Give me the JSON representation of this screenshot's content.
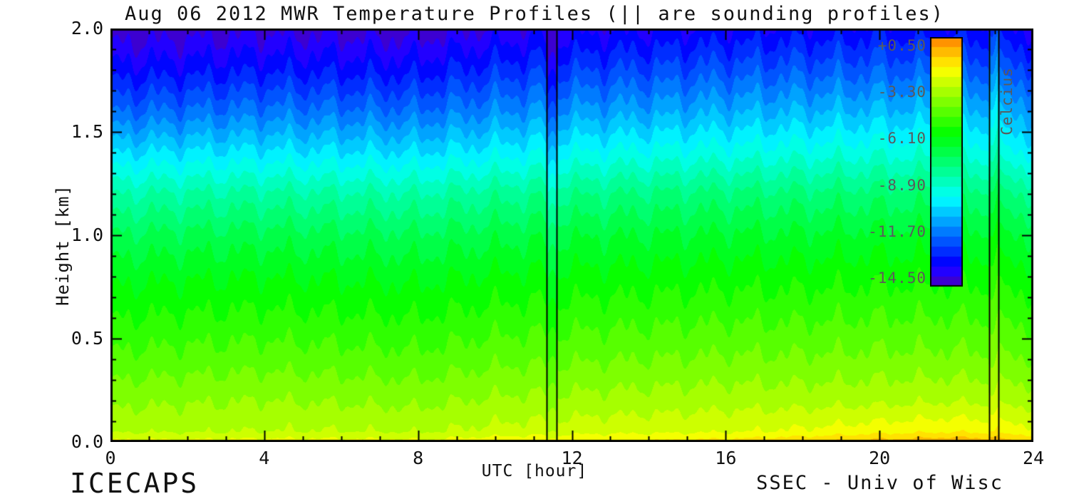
{
  "title": "Aug 06 2012 MWR Temperature Profiles (|| are sounding profiles)",
  "footer": {
    "left": "ICECAPS",
    "right": "SSEC - Univ of Wisc"
  },
  "colors": {
    "background": "#ffffff",
    "axis": "#000000",
    "tick_label": "#111111",
    "colorbar_label": "#5a5a5a"
  },
  "chart_data": {
    "type": "heatmap",
    "title": "Aug 06 2012 MWR Temperature Profiles (|| are sounding profiles)",
    "xlabel": "UTC [hour]",
    "ylabel": "Height [km]",
    "xlim": [
      0,
      24
    ],
    "ylim": [
      0,
      2
    ],
    "x_major_ticks": [
      0,
      4,
      8,
      12,
      16,
      20,
      24
    ],
    "x_tick_labels": [
      "0",
      "4",
      "8",
      "12",
      "16",
      "20",
      "24"
    ],
    "x_minor_step": 1,
    "y_major_ticks": [
      0,
      0.5,
      1,
      1.5,
      2
    ],
    "y_tick_labels": [
      "0.0",
      "0.5",
      "1.0",
      "1.5",
      "2.0"
    ],
    "y_minor_step": 0.1,
    "x": [
      0,
      2,
      4,
      6,
      8,
      10,
      12,
      14,
      16,
      18,
      20,
      22,
      24
    ],
    "y": [
      0,
      0.05,
      0.2,
      0.4,
      0.6,
      0.8,
      1.0,
      1.2,
      1.4,
      1.6,
      1.8,
      2.0
    ],
    "values": [
      [
        -0.6,
        -0.6,
        -0.5,
        -0.5,
        -0.6,
        -0.3,
        -0.1,
        0.0,
        0.2,
        0.5,
        0.9,
        1.2,
        0.7
      ],
      [
        -1.6,
        -1.6,
        -1.5,
        -1.5,
        -1.6,
        -1.3,
        -1.1,
        -1.0,
        -0.9,
        -0.7,
        -0.4,
        -0.2,
        -0.6
      ],
      [
        -2.4,
        -2.3,
        -2.2,
        -2.3,
        -2.4,
        -2.1,
        -2.0,
        -1.9,
        -1.8,
        -1.8,
        -1.7,
        -1.6,
        -1.8
      ],
      [
        -3.4,
        -3.3,
        -3.2,
        -3.3,
        -3.4,
        -3.1,
        -3.0,
        -2.9,
        -2.8,
        -2.8,
        -2.7,
        -2.7,
        -2.9
      ],
      [
        -4.3,
        -4.2,
        -4.1,
        -4.2,
        -4.3,
        -4.0,
        -3.9,
        -3.8,
        -3.7,
        -3.7,
        -3.6,
        -3.6,
        -3.8
      ],
      [
        -5.2,
        -5.1,
        -5.0,
        -5.1,
        -5.2,
        -4.9,
        -4.8,
        -4.7,
        -4.6,
        -4.6,
        -4.5,
        -4.5,
        -4.7
      ],
      [
        -6.3,
        -6.2,
        -6.1,
        -6.2,
        -6.3,
        -6.0,
        -5.8,
        -5.7,
        -5.6,
        -5.6,
        -5.5,
        -5.5,
        -5.8
      ],
      [
        -7.8,
        -7.7,
        -7.6,
        -7.7,
        -7.8,
        -7.4,
        -7.2,
        -7.0,
        -6.9,
        -6.9,
        -6.8,
        -6.8,
        -7.2
      ],
      [
        -9.9,
        -9.8,
        -9.7,
        -9.8,
        -9.9,
        -9.5,
        -9.2,
        -9.0,
        -8.9,
        -8.8,
        -8.7,
        -8.7,
        -9.3
      ],
      [
        -12.0,
        -11.9,
        -11.7,
        -11.8,
        -11.9,
        -11.4,
        -11.1,
        -10.9,
        -10.7,
        -10.6,
        -10.5,
        -10.5,
        -10.9
      ],
      [
        -13.8,
        -13.7,
        -13.5,
        -13.6,
        -13.7,
        -13.1,
        -12.8,
        -12.6,
        -12.4,
        -12.3,
        -12.2,
        -12.2,
        -12.6
      ],
      [
        -15.3,
        -15.2,
        -15.0,
        -15.1,
        -15.2,
        -14.7,
        -14.4,
        -14.2,
        -14.0,
        -13.9,
        -13.8,
        -13.8,
        -14.2
      ]
    ],
    "colorbar": {
      "label": "Celcius",
      "tick_labels": [
        "+0.50",
        "-3.30",
        "-6.10",
        "-8.90",
        "-11.70",
        "-14.50"
      ],
      "min": -15.5,
      "max": 2.0,
      "contour_step": 0.7
    },
    "sounding_times": [
      11.35,
      22.85
    ],
    "sounding_gap_hours": 0.25,
    "sounding_temp_offsets": [
      -1.5,
      1.5
    ]
  }
}
